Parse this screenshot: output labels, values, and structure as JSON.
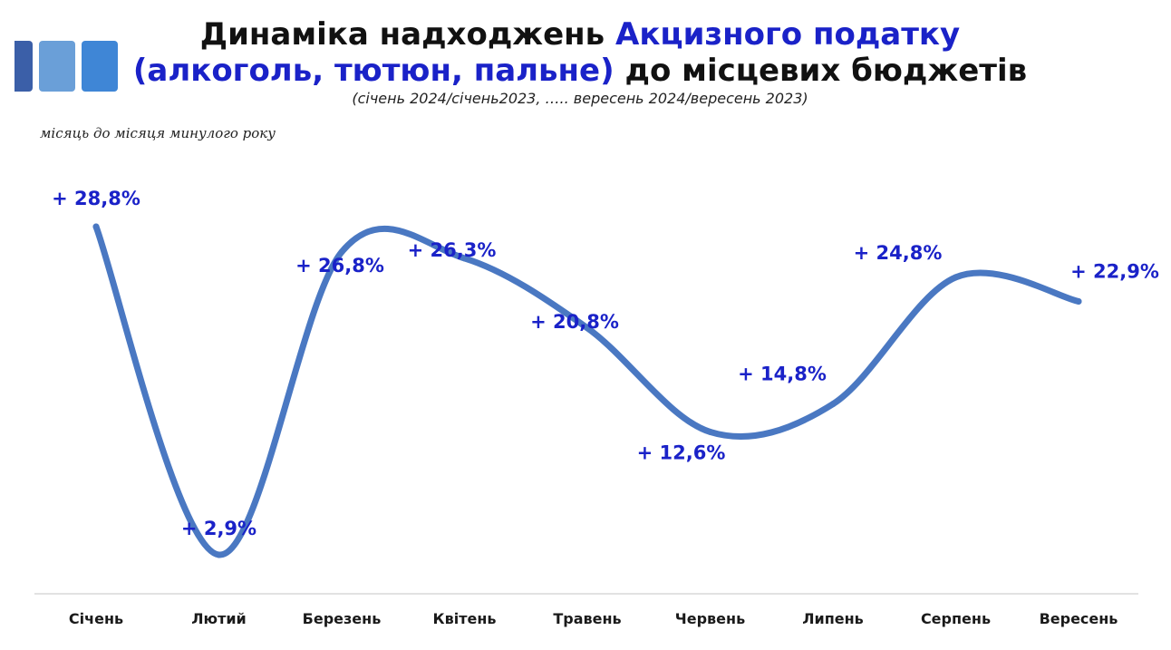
{
  "header": {
    "title_line1_plain": "Динаміка надходжень ",
    "title_line1_highlight": "Акцизного податку",
    "title_line2_highlight": "(алкоголь, тютюн, пальне)",
    "title_line2_plain": " до місцевих бюджетів",
    "subtitle": "(січень 2024/січень2023, ….. вересень 2024/вересень 2023)",
    "note": "місяць до місяця минулого року"
  },
  "colors": {
    "title_highlight": "#1a22c8",
    "line": "#4a78c2",
    "data_label": "#1a22c8",
    "logo_square_1": "#3b5fa8",
    "logo_square_2": "#6a9fd8",
    "logo_square_3": "#3f86d6",
    "axis": "#d9d9d9"
  },
  "chart_data": {
    "type": "line",
    "smooth": true,
    "categories": [
      "Січень",
      "Лютий",
      "Березень",
      "Квітень",
      "Травень",
      "Червень",
      "Липень",
      "Серпень",
      "Вересень"
    ],
    "values": [
      28.8,
      2.9,
      26.8,
      26.3,
      20.8,
      12.6,
      14.8,
      24.8,
      22.9
    ],
    "data_labels": [
      "+ 28,8%",
      "+ 2,9%",
      "+ 26,8%",
      "+ 26,3%",
      "+ 20,8%",
      "+ 12,6%",
      "+ 14,8%",
      "+ 24,8%",
      "+ 22,9%"
    ],
    "grid": false,
    "y_axis_visible": false
  }
}
